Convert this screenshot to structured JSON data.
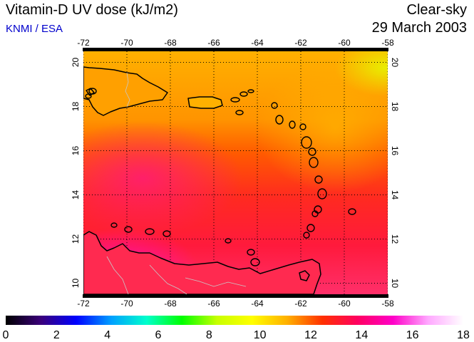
{
  "header": {
    "title": "Vitamin-D UV dose (kJ/m2)",
    "credit": "KNMI / ESA",
    "sky_condition": "Clear-sky",
    "date": "29 March 2003"
  },
  "map": {
    "lon_range": [
      -72,
      -58
    ],
    "lat_range": [
      9.5,
      20.5
    ],
    "lon_ticks": [
      "-72",
      "-70",
      "-68",
      "-66",
      "-64",
      "-62",
      "-60",
      "-58"
    ],
    "lat_ticks": [
      "10",
      "12",
      "14",
      "16",
      "18",
      "20"
    ],
    "grid": true,
    "coastline_color": "#000000",
    "border_color": "#c8c8c8"
  },
  "colorbar": {
    "min": 0,
    "max": 18,
    "tick_labels": [
      "0",
      "2",
      "4",
      "6",
      "8",
      "10",
      "12",
      "14",
      "16",
      "18"
    ],
    "colors": [
      "#000000",
      "#3a007a",
      "#0000ff",
      "#00a0ff",
      "#00ffcc",
      "#00ff00",
      "#c8ff00",
      "#ffff00",
      "#ffb000",
      "#ff3000",
      "#ff0060",
      "#ff00c8",
      "#ffa8ff",
      "#ffffff"
    ]
  }
}
